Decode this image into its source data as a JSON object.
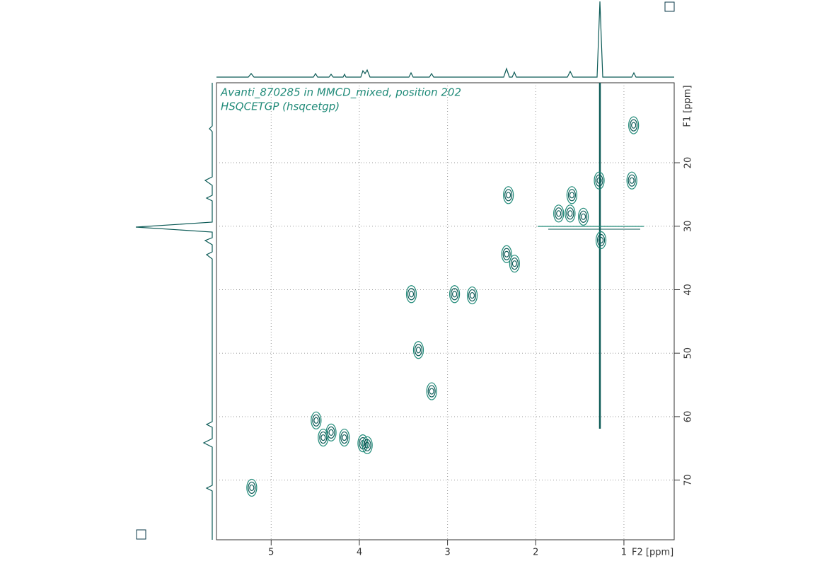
{
  "chart_data": {
    "type": "scatter",
    "annotations": [
      "Avanti_870285 in MMCD_mixed, position 202",
      "HSQCETGP (hsqcetgp)"
    ],
    "x_label": "F2 [ppm]",
    "y_label": "F1 [ppm]",
    "x": [
      0.89,
      1.28,
      0.91,
      2.31,
      1.59,
      1.74,
      1.61,
      1.46,
      1.26,
      2.33,
      2.24,
      3.41,
      2.92,
      2.72,
      3.33,
      3.18,
      4.49,
      4.41,
      4.32,
      4.17,
      3.96,
      3.91,
      5.22
    ],
    "values": [
      14.1,
      22.8,
      22.8,
      25.1,
      25.1,
      28.0,
      28.0,
      28.5,
      32.2,
      34.4,
      35.9,
      40.7,
      40.7,
      40.9,
      49.5,
      56.0,
      60.6,
      63.3,
      62.5,
      63.3,
      64.2,
      64.5,
      71.2
    ],
    "color": "#0b5a56",
    "xlim": [
      5.62,
      0.43
    ],
    "xticks": [
      5,
      4,
      3,
      2,
      1
    ],
    "ylim": [
      7.4,
      79.4
    ],
    "yticks": [
      20,
      30,
      40,
      50,
      60,
      70
    ],
    "grid": true
  }
}
